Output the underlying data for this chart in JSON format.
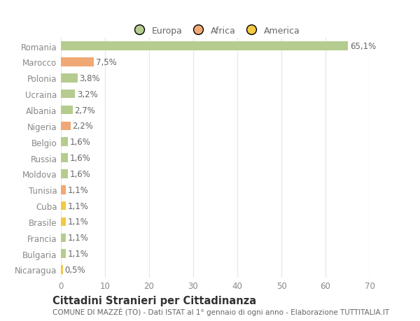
{
  "countries": [
    "Romania",
    "Marocco",
    "Polonia",
    "Ucraina",
    "Albania",
    "Nigeria",
    "Belgio",
    "Russia",
    "Moldova",
    "Tunisia",
    "Cuba",
    "Brasile",
    "Francia",
    "Bulgaria",
    "Nicaragua"
  ],
  "values": [
    65.1,
    7.5,
    3.8,
    3.2,
    2.7,
    2.2,
    1.6,
    1.6,
    1.6,
    1.1,
    1.1,
    1.1,
    1.1,
    1.1,
    0.5
  ],
  "labels": [
    "65,1%",
    "7,5%",
    "3,8%",
    "3,2%",
    "2,7%",
    "2,2%",
    "1,6%",
    "1,6%",
    "1,6%",
    "1,1%",
    "1,1%",
    "1,1%",
    "1,1%",
    "1,1%",
    "0,5%"
  ],
  "colors": [
    "#b5cc8e",
    "#f0a875",
    "#b5cc8e",
    "#b5cc8e",
    "#b5cc8e",
    "#f0a875",
    "#b5cc8e",
    "#b5cc8e",
    "#b5cc8e",
    "#f0a875",
    "#f5c842",
    "#f5c842",
    "#b5cc8e",
    "#b5cc8e",
    "#f5c842"
  ],
  "legend_labels": [
    "Europa",
    "Africa",
    "America"
  ],
  "legend_colors": [
    "#b5cc8e",
    "#f0a875",
    "#f5c842"
  ],
  "title": "Cittadini Stranieri per Cittadinanza",
  "subtitle": "COMUNE DI MAZZÈ (TO) - Dati ISTAT al 1° gennaio di ogni anno - Elaborazione TUTTITALIA.IT",
  "xlim": [
    0,
    70
  ],
  "xticks": [
    0,
    10,
    20,
    30,
    40,
    50,
    60,
    70
  ],
  "background_color": "#ffffff",
  "axes_bg_color": "#ffffff",
  "grid_color": "#e8e8e8",
  "bar_height": 0.55,
  "label_fontsize": 8.5,
  "tick_fontsize": 8.5,
  "title_fontsize": 10.5,
  "subtitle_fontsize": 7.5,
  "label_color": "#666666",
  "tick_color": "#888888",
  "title_color": "#333333",
  "subtitle_color": "#666666"
}
